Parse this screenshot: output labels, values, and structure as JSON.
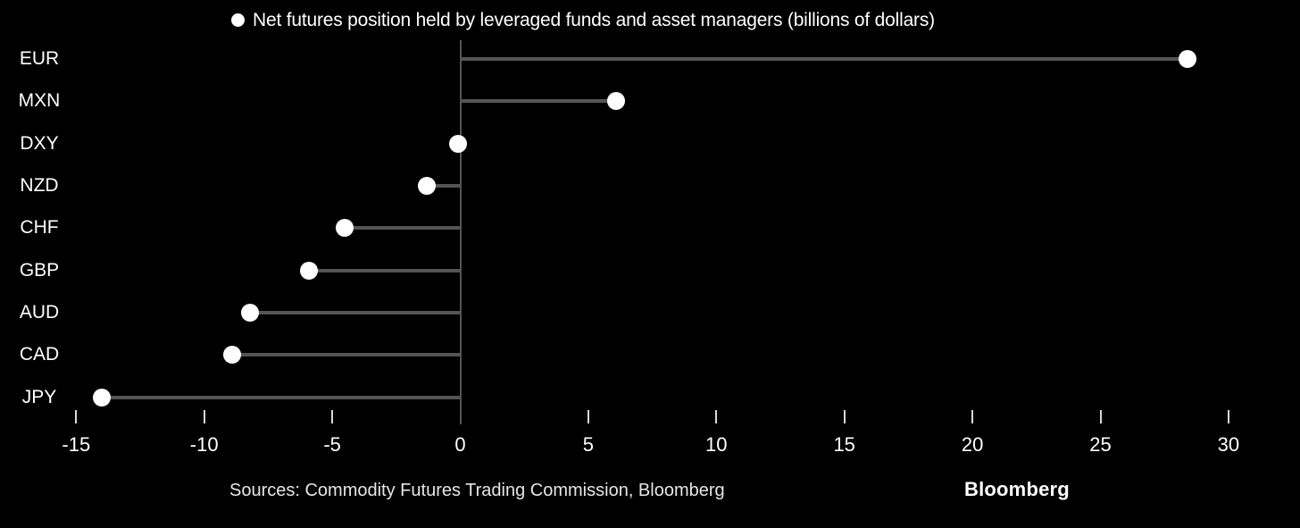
{
  "title": {
    "text": "Net futures position held by leveraged funds and asset managers (billions of dollars)"
  },
  "chart_data": {
    "type": "scatter",
    "variant": "horizontal-lollipop",
    "orientation": "horizontal",
    "title": "Net futures position held by leveraged funds and asset managers (billions of dollars)",
    "categories": [
      "EUR",
      "MXN",
      "DXY",
      "NZD",
      "CHF",
      "GBP",
      "AUD",
      "CAD",
      "JPY"
    ],
    "values": [
      28.4,
      6.1,
      -0.1,
      -1.3,
      -4.5,
      -5.9,
      -8.2,
      -8.9,
      -14.0
    ],
    "xlabel": "",
    "ylabel": "",
    "xlim": [
      -18,
      33
    ],
    "xticks": [
      -15,
      -10,
      -5,
      0,
      5,
      10,
      15,
      20,
      25,
      30
    ],
    "baseline": 0,
    "grid": false,
    "legend_position": "top-center",
    "units": "billions of dollars"
  },
  "footer": {
    "sources": "Sources: Commodity Futures Trading Commission, Bloomberg",
    "logo": "Bloomberg"
  },
  "colors": {
    "background": "#000000",
    "dot": "#ffffff",
    "stem": "#545454",
    "zero_line": "#545454",
    "tick": "#d9d9d9",
    "label_text": "#ffffff",
    "source_text": "#e6e6e6",
    "logo_text": "#ffffff"
  }
}
